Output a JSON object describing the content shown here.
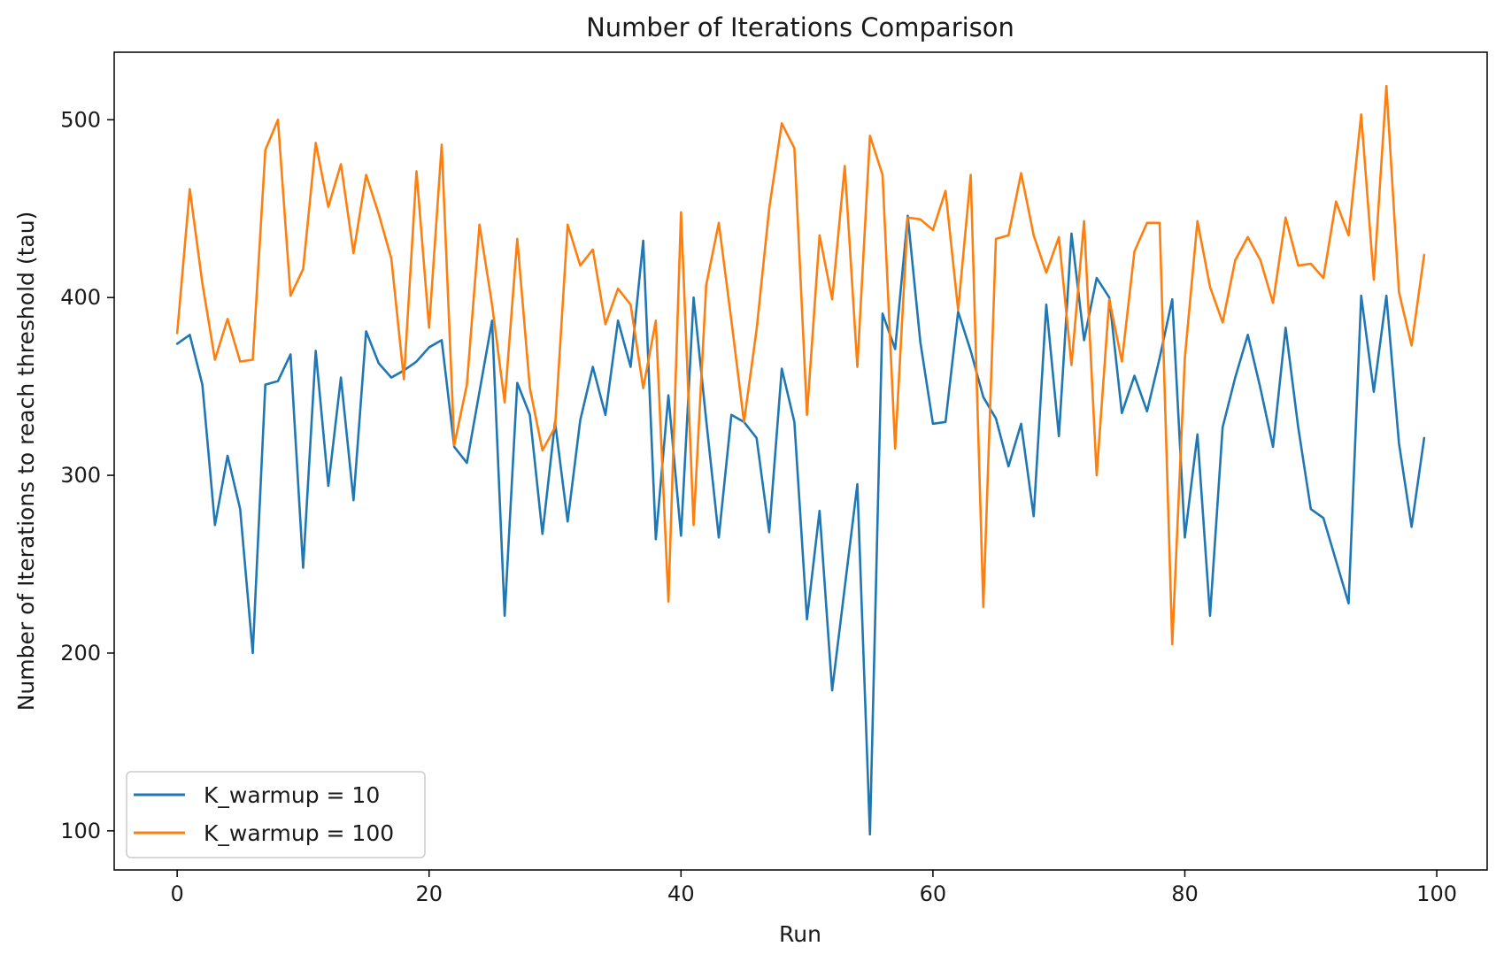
{
  "chart_data": {
    "type": "line",
    "title": "Number of Iterations Comparison",
    "xlabel": "Run",
    "ylabel": "Number of Iterations to reach threshold (tau)",
    "xlim": [
      -5,
      104
    ],
    "ylim": [
      78,
      538
    ],
    "xticks": [
      0,
      20,
      40,
      60,
      80,
      100
    ],
    "yticks": [
      100,
      200,
      300,
      400,
      500
    ],
    "grid": false,
    "legend_position": "lower-left",
    "series": [
      {
        "name": "K_warmup = 10",
        "color": "#1f77b4",
        "x": [
          0,
          1,
          2,
          3,
          4,
          5,
          6,
          7,
          8,
          9,
          10,
          11,
          12,
          13,
          14,
          15,
          16,
          17,
          18,
          19,
          20,
          21,
          22,
          23,
          24,
          25,
          26,
          27,
          28,
          29,
          30,
          31,
          32,
          33,
          34,
          35,
          36,
          37,
          38,
          39,
          40,
          41,
          42,
          43,
          44,
          45,
          46,
          47,
          48,
          49,
          50,
          51,
          52,
          53,
          54,
          55,
          56,
          57,
          58,
          59,
          60,
          61,
          62,
          63,
          64,
          65,
          66,
          67,
          68,
          69,
          70,
          71,
          72,
          73,
          74,
          75,
          76,
          77,
          78,
          79,
          80,
          81,
          82,
          83,
          84,
          85,
          86,
          87,
          88,
          89,
          90,
          91,
          92,
          93,
          94,
          95,
          96,
          97,
          98,
          99
        ],
        "values": [
          374,
          379,
          351,
          272,
          311,
          281,
          200,
          351,
          353,
          368,
          248,
          370,
          294,
          355,
          286,
          381,
          363,
          355,
          359,
          364,
          372,
          376,
          316,
          307,
          347,
          387,
          221,
          352,
          334,
          267,
          330,
          274,
          331,
          361,
          334,
          387,
          361,
          432,
          264,
          345,
          266,
          400,
          331,
          265,
          334,
          330,
          321,
          268,
          360,
          330,
          219,
          280,
          179,
          237,
          295,
          98,
          391,
          371,
          446,
          375,
          329,
          330,
          392,
          370,
          344,
          332,
          305,
          329,
          277,
          396,
          322,
          436,
          376,
          411,
          400,
          335,
          356,
          336,
          366,
          399,
          265,
          323,
          221,
          327,
          355,
          379,
          349,
          316,
          383,
          327,
          281,
          276,
          252,
          228,
          401,
          347,
          401,
          318,
          271,
          321
        ]
      },
      {
        "name": "K_warmup = 100",
        "color": "#ff7f0e",
        "x": [
          0,
          1,
          2,
          3,
          4,
          5,
          6,
          7,
          8,
          9,
          10,
          11,
          12,
          13,
          14,
          15,
          16,
          17,
          18,
          19,
          20,
          21,
          22,
          23,
          24,
          25,
          26,
          27,
          28,
          29,
          30,
          31,
          32,
          33,
          34,
          35,
          36,
          37,
          38,
          39,
          40,
          41,
          42,
          43,
          44,
          45,
          46,
          47,
          48,
          49,
          50,
          51,
          52,
          53,
          54,
          55,
          56,
          57,
          58,
          59,
          60,
          61,
          62,
          63,
          64,
          65,
          66,
          67,
          68,
          69,
          70,
          71,
          72,
          73,
          74,
          75,
          76,
          77,
          78,
          79,
          80,
          81,
          82,
          83,
          84,
          85,
          86,
          87,
          88,
          89,
          90,
          91,
          92,
          93,
          94,
          95,
          96,
          97,
          98,
          99
        ],
        "values": [
          380,
          461,
          408,
          365,
          388,
          364,
          365,
          483,
          500,
          401,
          416,
          487,
          451,
          475,
          425,
          469,
          447,
          422,
          354,
          471,
          383,
          486,
          317,
          351,
          441,
          396,
          341,
          433,
          349,
          314,
          327,
          441,
          418,
          427,
          385,
          405,
          396,
          349,
          387,
          229,
          448,
          272,
          407,
          442,
          387,
          330,
          382,
          450,
          498,
          484,
          334,
          435,
          399,
          474,
          361,
          491,
          469,
          315,
          445,
          444,
          438,
          460,
          393,
          469,
          226,
          433,
          435,
          470,
          435,
          414,
          434,
          362,
          443,
          300,
          399,
          364,
          426,
          442,
          442,
          205,
          366,
          443,
          406,
          386,
          421,
          434,
          421,
          397,
          445,
          418,
          419,
          411,
          454,
          435,
          503,
          410,
          519,
          403,
          373,
          424
        ]
      }
    ]
  }
}
